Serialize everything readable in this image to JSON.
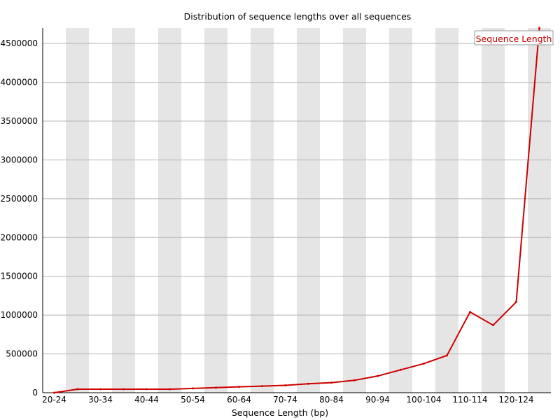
{
  "chart_data": {
    "type": "line",
    "title": "Distribution of sequence lengths over all sequences",
    "xlabel": "Sequence Length (bp)",
    "ylabel": "",
    "ylim": [
      0,
      4700000
    ],
    "y_ticks": [
      0,
      500000,
      1000000,
      1500000,
      2000000,
      2500000,
      3000000,
      3500000,
      4000000,
      4500000
    ],
    "x_tick_labels": [
      "20-24",
      "30-34",
      "40-44",
      "50-54",
      "60-64",
      "70-74",
      "80-84",
      "90-94",
      "100-104",
      "110-114",
      "120-124"
    ],
    "categories": [
      "20-24",
      "25-29",
      "30-34",
      "35-39",
      "40-44",
      "45-49",
      "50-54",
      "55-59",
      "60-64",
      "65-69",
      "70-74",
      "75-79",
      "80-84",
      "85-89",
      "90-94",
      "95-99",
      "100-104",
      "105-109",
      "110-114",
      "115-119",
      "120-124",
      "125-126"
    ],
    "series": [
      {
        "name": "Sequence Length",
        "color": "#cc0000",
        "values": [
          0,
          45000,
          45000,
          45000,
          45000,
          45000,
          55000,
          65000,
          75000,
          85000,
          95000,
          115000,
          130000,
          160000,
          215000,
          295000,
          375000,
          480000,
          1040000,
          870000,
          1170000,
          4700000
        ]
      }
    ],
    "grid": true,
    "legend": "top-right",
    "background_band_color": "#e5e5e5"
  }
}
